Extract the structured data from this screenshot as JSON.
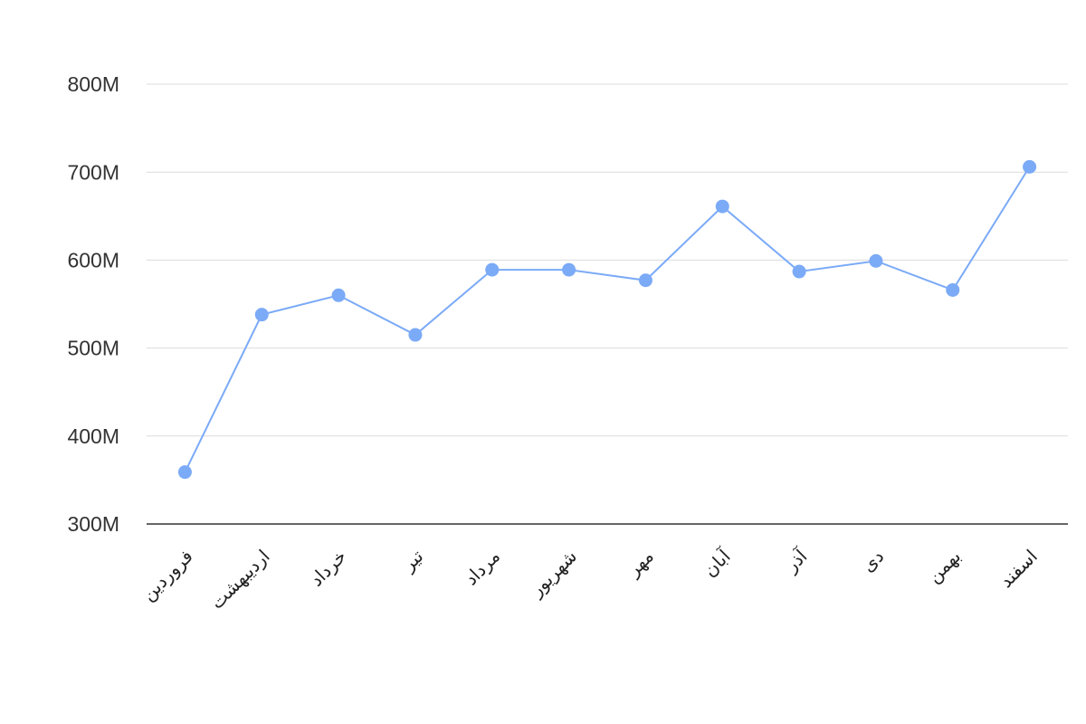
{
  "chart_data": {
    "type": "line",
    "categories": [
      "فروردین",
      "اردیبهشت",
      "خرداد",
      "تیر",
      "مرداد",
      "شهریور",
      "مهر",
      "آبان",
      "آذر",
      "دی",
      "بهمن",
      "اسفند"
    ],
    "series": [
      {
        "color": "#7baaf7",
        "values": [
          359000000,
          538000000,
          560000000,
          515000000,
          589000000,
          589000000,
          577000000,
          661000000,
          587000000,
          599000000,
          566000000,
          706000000
        ]
      }
    ],
    "ylim": [
      300000000,
      800000000
    ],
    "yticks": [
      {
        "value": 300000000,
        "label": "300M"
      },
      {
        "value": 400000000,
        "label": "400M"
      },
      {
        "value": 500000000,
        "label": "500M"
      },
      {
        "value": 600000000,
        "label": "600M"
      },
      {
        "value": 700000000,
        "label": "700M"
      },
      {
        "value": 800000000,
        "label": "800M"
      }
    ],
    "grid": true
  }
}
